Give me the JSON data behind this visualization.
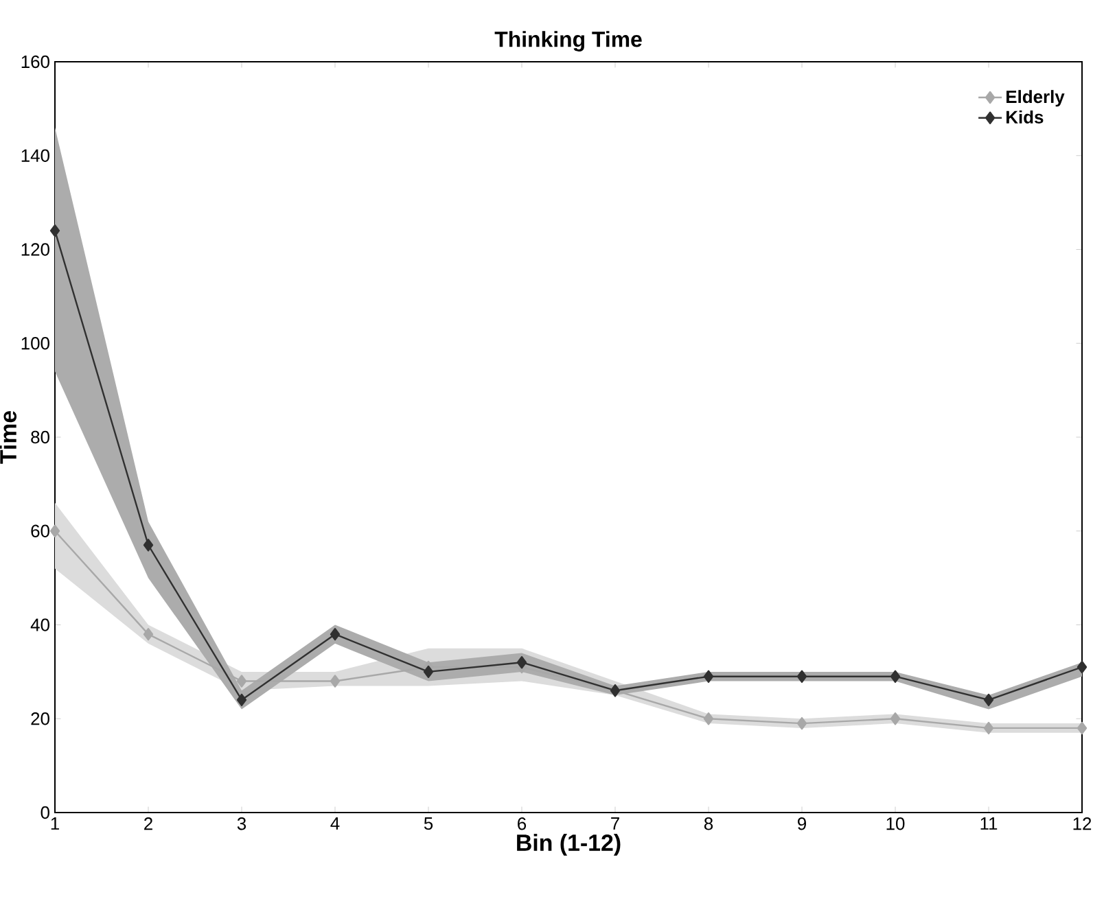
{
  "chart_data": {
    "type": "line",
    "title": "Thinking Time",
    "xlabel": "Bin (1-12)",
    "ylabel": "Time",
    "x": [
      1,
      2,
      3,
      4,
      5,
      6,
      7,
      8,
      9,
      10,
      11,
      12
    ],
    "xlim": [
      1,
      12
    ],
    "xticks": [
      1,
      2,
      3,
      4,
      5,
      6,
      7,
      8,
      9,
      10,
      11,
      12
    ],
    "ylim": [
      0,
      160
    ],
    "yticks": [
      0,
      20,
      40,
      60,
      80,
      100,
      120,
      140,
      160
    ],
    "series": [
      {
        "name": "Elderly",
        "color": "#a8a8a8",
        "values": [
          60,
          38,
          28,
          28,
          31,
          31,
          26,
          20,
          19,
          20,
          18,
          18
        ],
        "lower": [
          52,
          36,
          26,
          27,
          27,
          28,
          25,
          19,
          18,
          19,
          17,
          17
        ],
        "upper": [
          66,
          40,
          30,
          30,
          35,
          35,
          28,
          21,
          20,
          21,
          19,
          19
        ]
      },
      {
        "name": "Kids",
        "color": "#303030",
        "values": [
          124,
          57,
          24,
          38,
          30,
          32,
          26,
          29,
          29,
          29,
          24,
          31
        ],
        "lower": [
          94,
          50,
          22,
          36,
          28,
          30,
          25,
          28,
          28,
          28,
          22,
          29
        ],
        "upper": [
          146,
          62,
          26,
          40,
          32,
          34,
          27,
          30,
          30,
          30,
          25,
          32
        ]
      }
    ],
    "legend": "top right",
    "marker": "diamond",
    "line_style": "solid",
    "grid": false
  }
}
